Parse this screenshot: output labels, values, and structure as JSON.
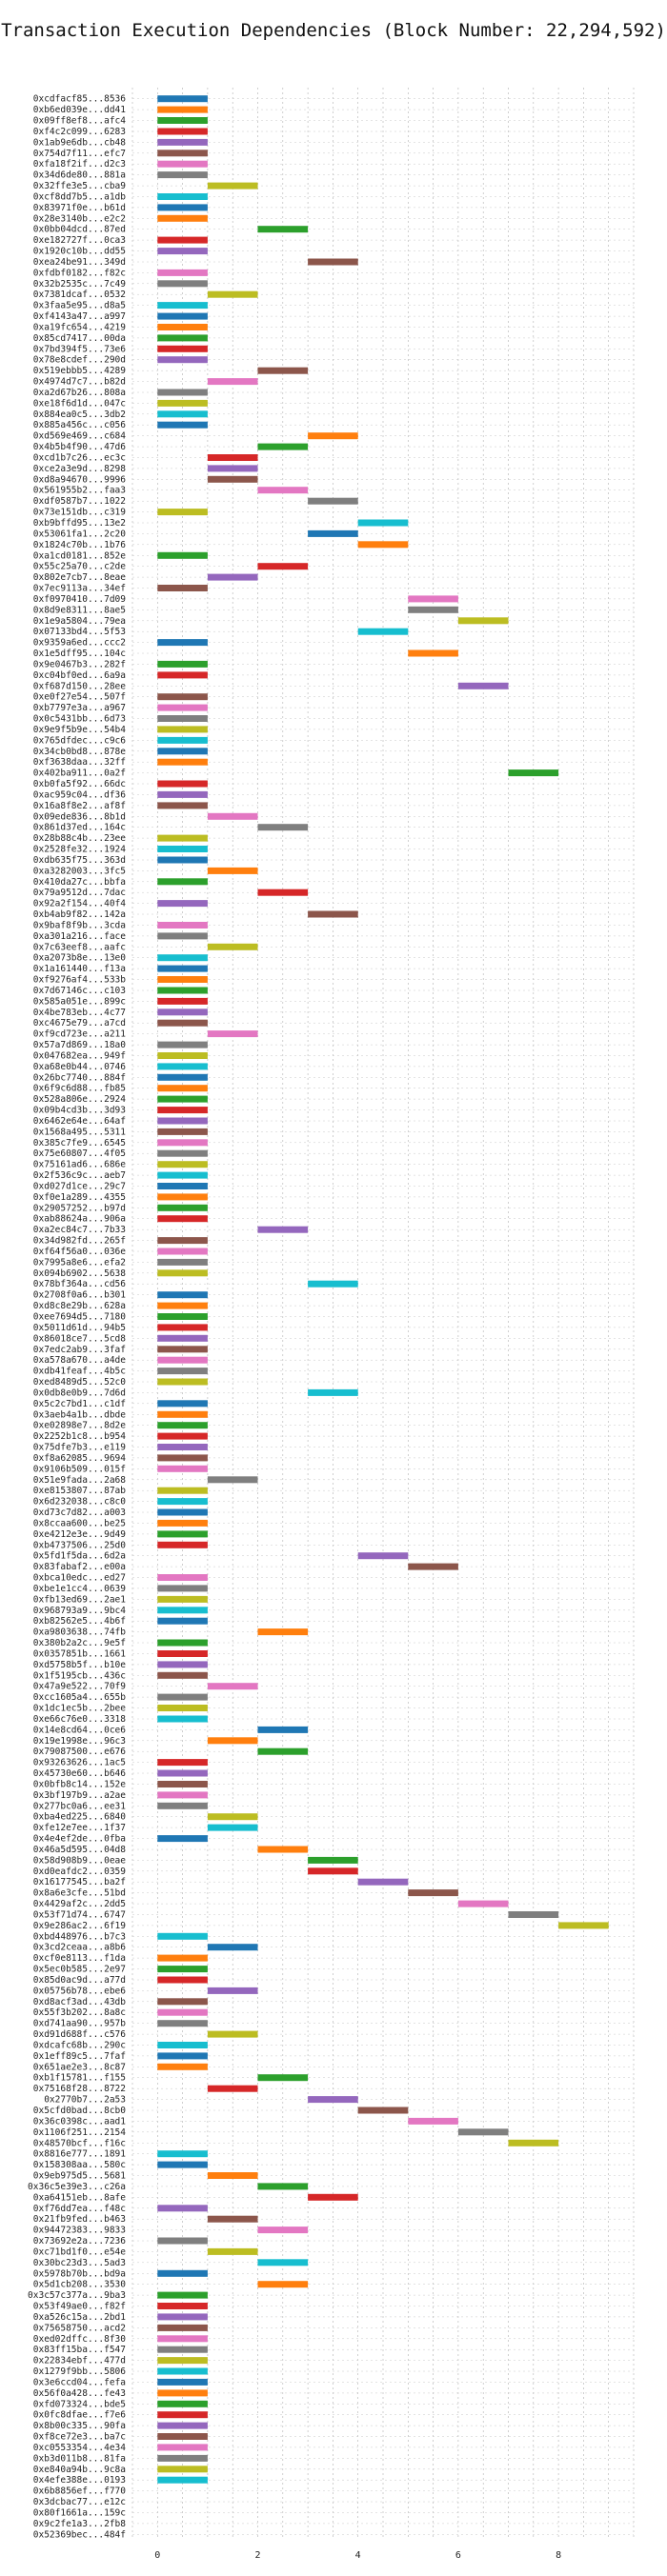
{
  "chart_data": {
    "type": "bar",
    "orientation": "horizontal-gantt",
    "title": "Transaction Execution Dependencies (Block Number: 22,294,592)",
    "xlabel": "",
    "ylabel": "",
    "xlim": [
      -0.5,
      9.5
    ],
    "xticks": [
      0,
      2,
      4,
      6,
      8
    ],
    "grid": true,
    "legend": "none",
    "palette": [
      "#1f77b4",
      "#ff7f0e",
      "#2ca02c",
      "#d62728",
      "#9467bd",
      "#8c564b",
      "#e377c2",
      "#7f7f7f",
      "#bcbd22",
      "#17becf"
    ],
    "categories": [
      "0xcdfacf85...8536",
      "0xb6ed039e...dd41",
      "0x09ff8ef8...afc4",
      "0xf4c2c099...6283",
      "0x1ab9e6db...cb48",
      "0x754d7f11...efc7",
      "0xfa18f2if...d2c3",
      "0x34d6de80...881a",
      "0x32ffe3e5...cba9",
      "0xcf8dd7b5...a1db",
      "0x83971f0e...b61d",
      "0x28e3140b...e2c2",
      "0x0bb04dcd...87ed",
      "0xe182727f...0ca3",
      "0x1920c10b...dd55",
      "0xea24be91...349d",
      "0xfdbf0182...f82c",
      "0x32b2535c...7c49",
      "0x7381dcaf...0532",
      "0x3faa5e95...d8a5",
      "0xf4143a47...a997",
      "0xa19fc654...4219",
      "0x85cd7417...00da",
      "0x7bd394f5...73e6",
      "0x78e8cdef...290d",
      "0x519ebbb5...4289",
      "0x4974d7c7...b82d",
      "0xa2d67b26...808a",
      "0xe18f6d1d...047c",
      "0x884ea0c5...3db2",
      "0x885a456c...c056",
      "0xd569e469...c684",
      "0x4b5b4f90...47d6",
      "0xcd1b7c26...ec3c",
      "0xce2a3e9d...8298",
      "0xd8a94670...9996",
      "0x561955b2...faa3",
      "0xdf0587b7...1022",
      "0x73e151db...c319",
      "0xb9bffd95...13e2",
      "0x53061fa1...2c20",
      "0x1824c70b...1b76",
      "0xa1cd0181...852e",
      "0x55c25a70...c2de",
      "0x802e7cb7...8eae",
      "0x7ec9113a...34ef",
      "0xf0970410...7d09",
      "0x8d9e8311...8ae5",
      "0x1e9a5804...79ea",
      "0x07133bd4...5f53",
      "0x9359a6ed...ccc2",
      "0x1e5dff95...104c",
      "0x9e0467b3...282f",
      "0xc04bf0ed...6a9a",
      "0xf687d150...28ee",
      "0xe0f27e54...507f",
      "0xb7797e3a...a967",
      "0x0c5431bb...6d73",
      "0x9e9f5b9e...54b4",
      "0x765dfdec...c9c6",
      "0x34cb0bd8...878e",
      "0xf3638daa...32ff",
      "0x402ba911...0a2f",
      "0xb0fa5f92...66dc",
      "0xac959c04...df36",
      "0x16a8f8e2...af8f",
      "0x09ede836...8b1d",
      "0x861d37ed...164c",
      "0x28b88c4b...23ee",
      "0x2528fe32...1924",
      "0xdb635f75...363d",
      "0xa3282003...3fc5",
      "0x410da27c...bbfa",
      "0x79a9512d...7dac",
      "0x92a2f154...40f4",
      "0xb4ab9f82...142a",
      "0x9baf8f9b...3cda",
      "0xa301a216...face",
      "0x7c63eef8...aafc",
      "0xa2073b8e...13e0",
      "0x1a161440...f13a",
      "0xf9276af4...533b",
      "0x7d67146c...c103",
      "0x585a051e...899c",
      "0x4be783eb...4c77",
      "0xc4675e79...a7cd",
      "0xf9cd723e...a211",
      "0x57a7d869...18a0",
      "0x047682ea...949f",
      "0xa68e0b44...0746",
      "0x26bc7740...884f",
      "0x6f9c6d88...fb85",
      "0x528a806e...2924",
      "0x09b4cd3b...3d93",
      "0x6462e64e...64af",
      "0x1568a495...5311",
      "0x385c7fe9...6545",
      "0x75e60807...4f05",
      "0x75161ad6...686e",
      "0x2f536c9c...aeb7",
      "0xd027d1ce...29c7",
      "0xf0e1a289...4355",
      "0x29057252...b97d",
      "0xab88624a...906a",
      "0xa2ec84c7...7b33",
      "0x34d982fd...265f",
      "0xf64f56a0...036e",
      "0x7995a8e6...efa2",
      "0x094b6902...5638",
      "0x78bf364a...cd56",
      "0x2708f0a6...b301",
      "0xd8c8e29b...628a",
      "0xee7694d5...7180",
      "0x5011d61d...94b5",
      "0x86018ce7...5cd8",
      "0x7edc2ab9...3faf",
      "0xa578a670...a4de",
      "0xdb41feaf...4b5c",
      "0xed8489d5...52c0",
      "0x0db8e0b9...7d6d",
      "0x5c2c7bd1...c1df",
      "0x3aeb4a1b...dbde",
      "0xe02898e7...8d2e",
      "0x2252b1c8...b954",
      "0x75dfe7b3...e119",
      "0xf8a62085...9694",
      "0x9106b509...015f",
      "0x51e9fada...2a68",
      "0xe8153807...87ab",
      "0x6d232038...c8c0",
      "0xd73c7d82...a003",
      "0x8ccaa600...be25",
      "0xe4212e3e...9d49",
      "0xb4737506...25d0",
      "0x5fd1f5da...6d2a",
      "0x83fabaf2...e00a",
      "0xbca10edc...ed27",
      "0xbe1e1cc4...0639",
      "0xfb13ed69...2ae1",
      "0x968793a9...9bc4",
      "0xb82562e5...4b6f",
      "0xa9803638...74fb",
      "0x380b2a2c...9e5f",
      "0x0357851b...1661",
      "0xd5758b5f...b10e",
      "0x1f5195cb...436c",
      "0x47a9e522...70f9",
      "0xcc1605a4...655b",
      "0x1dc1ec5b...2bee",
      "0xe66c76e0...3318",
      "0x14e8cd64...0ce6",
      "0x19e1998e...96c3",
      "0x79087500...e676",
      "0x93263626...1ac5",
      "0x45730e60...b646",
      "0x0bfb8c14...152e",
      "0x3bf197b9...a2ae",
      "0x277bc0a6...ee31",
      "0xba4ed225...6840",
      "0xfe12e7ee...1f37",
      "0x4e4ef2de...0fba",
      "0x46a5d595...04d8",
      "0x58d908b9...0eae",
      "0xd0eafdc2...0359",
      "0x16177545...ba2f",
      "0x8a6e3cfe...51bd",
      "0x4429af2c...2dd5",
      "0x53f71d74...6747",
      "0x9e286ac2...6f19",
      "0xbd448976...b7c3",
      "0x3cd2ceaa...a8b6",
      "0xcf0e8113...f1da",
      "0x5ec0b585...2e97",
      "0x85d0ac9d...a77d",
      "0x05756b78...ebe6",
      "0xd8acf3ad...43db",
      "0x55f3b202...8a8c",
      "0xd741aa90...957b",
      "0xd91d688f...c576",
      "0xdcafc68b...290c",
      "0x1eff89c5...7faf",
      "0x651ae2e3...8c87",
      "0xb1f15781...f155",
      "0x75168f28...8722",
      "0x2770b7...2a53",
      "0x5cfd0bad...8cb0",
      "0x36c0398c...aad1",
      "0x1106f251...2154",
      "0x48570bcf...f16c",
      "0x8816e777...1891",
      "0x158308aa...580c",
      "0x9eb975d5...5681",
      "0x36c5e39e3...c26a",
      "0xa64151eb...8afe",
      "0xf76dd7ea...f48c",
      "0x21fb9fed...b463",
      "0x94472383...9833",
      "0x73692e2a...7236",
      "0xc71bd1f0...e54e",
      "0x30bc23d3...5ad3",
      "0x5978b70b...bd9a",
      "0x5d1cb208...3530",
      "0x3c57c377a...9ba3",
      "0x53f49ae0...f82f",
      "0xa526c15a...2bd1",
      "0x75658750...acd2",
      "0xed02dffc...8f30",
      "0x83ff15ba...f547",
      "0x22834ebf...477d",
      "0x1279f9bb...5806",
      "0x3e6ccd04...fefa",
      "0x56f0a428...fe43",
      "0xfd073324...bde5",
      "0x0fc8dfae...f7e6",
      "0x8b00c335...90fa",
      "0xf8ce72e3...ba7c",
      "0xc0553354...4e34",
      "0xb3d011b8...81fa",
      "0xe840a94b...9c8a",
      "0x4efe388e...0193",
      "0x6b8856ef...f770",
      "0x3dcbac77...e12c",
      "0x80f1661a...159c",
      "0x9c2fe1a3...2fb8",
      "0x52369bec...484f"
    ],
    "start": [
      0,
      0,
      0,
      0,
      0,
      0,
      0,
      0,
      1,
      0,
      0,
      0,
      2,
      0,
      0,
      3,
      0,
      0,
      1,
      0,
      0,
      0,
      0,
      0,
      0,
      2,
      1,
      0,
      0,
      0,
      0,
      3,
      2,
      1,
      1,
      1,
      2,
      3,
      0,
      4,
      3,
      4,
      0,
      2,
      1,
      0,
      5,
      5,
      6,
      4,
      0,
      5,
      0,
      0,
      6,
      0,
      0,
      0,
      0,
      0,
      0,
      0,
      7,
      0,
      0,
      0,
      1,
      2,
      0,
      0,
      0,
      1,
      0,
      2,
      0,
      3,
      0,
      0,
      1,
      0,
      0,
      0,
      0,
      0,
      0,
      0,
      1,
      0,
      0,
      0,
      0,
      0,
      0,
      0,
      0,
      0,
      0,
      0,
      0,
      0,
      0,
      0,
      0,
      0,
      2,
      0,
      0,
      0,
      0,
      3,
      0,
      0,
      0,
      0,
      0,
      0,
      0,
      0,
      0,
      3,
      0,
      0,
      0,
      0,
      0,
      0,
      0,
      1,
      0,
      0,
      0,
      0,
      0,
      0,
      4,
      5,
      0,
      0,
      0,
      0,
      0,
      2,
      0,
      0,
      0,
      0,
      1,
      0,
      0,
      0,
      2,
      1,
      2,
      0,
      0,
      0,
      0,
      0,
      1,
      1,
      0,
      2,
      3,
      3,
      4,
      5,
      6,
      7,
      8,
      0,
      1,
      0,
      0,
      0,
      1,
      0,
      0,
      0,
      1,
      0,
      0,
      0,
      2,
      1,
      3,
      4,
      5,
      6,
      7,
      0,
      0,
      1,
      2,
      3,
      0,
      1,
      2,
      0,
      1,
      2,
      0,
      2,
      0,
      0,
      0,
      0,
      0,
      0,
      0,
      0,
      0,
      0,
      0,
      0,
      0,
      0,
      0,
      0,
      0,
      0
    ],
    "duration": [
      1,
      1,
      1,
      1,
      1,
      1,
      1,
      1,
      1,
      1,
      1,
      1,
      1,
      1,
      1,
      1,
      1,
      1,
      1,
      1,
      1,
      1,
      1,
      1,
      1,
      1,
      1,
      1,
      1,
      1,
      1,
      1,
      1,
      1,
      1,
      1,
      1,
      1,
      1,
      1,
      1,
      1,
      1,
      1,
      1,
      1,
      1,
      1,
      1,
      1,
      1,
      1,
      1,
      1,
      1,
      1,
      1,
      1,
      1,
      1,
      1,
      1,
      1,
      1,
      1,
      1,
      1,
      1,
      1,
      1,
      1,
      1,
      1,
      1,
      1,
      1,
      1,
      1,
      1,
      1,
      1,
      1,
      1,
      1,
      1,
      1,
      1,
      1,
      1,
      1,
      1,
      1,
      1,
      1,
      1,
      1,
      1,
      1,
      1,
      1,
      1,
      1,
      1,
      1,
      1,
      1,
      1,
      1,
      1,
      1,
      1,
      1,
      1,
      1,
      1,
      1,
      1,
      1,
      1,
      1,
      1,
      1,
      1,
      1,
      1,
      1,
      1,
      1,
      1,
      1,
      1,
      1,
      1,
      1,
      1,
      1,
      1,
      1,
      1,
      1,
      1,
      1,
      1,
      1,
      1,
      1,
      1,
      1,
      1,
      1,
      1,
      1,
      1,
      1,
      1,
      1,
      1,
      1,
      1,
      1,
      1,
      1,
      1,
      1,
      1,
      1,
      1,
      1,
      1,
      1,
      1,
      1,
      1,
      1,
      1,
      1,
      1,
      1,
      1,
      1,
      1,
      1,
      1,
      1,
      1,
      1,
      1,
      1,
      1,
      1,
      1,
      1,
      1,
      1,
      1,
      1,
      1,
      1,
      1,
      1,
      1,
      1,
      1,
      1,
      1,
      1,
      1,
      1,
      1,
      1,
      1,
      1,
      1,
      1,
      1,
      1,
      1,
      1,
      1,
      1
    ],
    "colors": [
      0,
      1,
      2,
      3,
      4,
      5,
      6,
      7,
      8,
      9,
      0,
      1,
      2,
      3,
      4,
      5,
      6,
      7,
      8,
      9,
      0,
      1,
      2,
      3,
      4,
      5,
      6,
      7,
      8,
      9,
      0,
      1,
      2,
      3,
      4,
      5,
      6,
      7,
      8,
      9,
      0,
      1,
      2,
      3,
      4,
      5,
      6,
      7,
      8,
      9,
      0,
      1,
      2,
      3,
      4,
      5,
      6,
      7,
      8,
      9,
      0,
      1,
      2,
      3,
      4,
      5,
      6,
      7,
      8,
      9,
      0,
      1,
      2,
      3,
      4,
      5,
      6,
      7,
      8,
      9,
      0,
      1,
      2,
      3,
      4,
      5,
      6,
      7,
      8,
      9,
      0,
      1,
      2,
      3,
      4,
      5,
      6,
      7,
      8,
      9,
      0,
      1,
      2,
      3,
      4,
      5,
      6,
      7,
      8,
      9,
      0,
      1,
      2,
      3,
      4,
      5,
      6,
      7,
      8,
      9,
      0,
      1,
      2,
      3,
      4,
      5,
      6,
      7,
      8,
      9,
      0,
      1,
      2,
      3,
      4,
      5,
      6,
      7,
      8,
      9,
      0,
      1,
      2,
      3,
      4,
      5,
      6,
      7,
      8,
      9,
      0,
      1,
      2,
      3,
      4,
      5,
      6,
      7,
      8,
      9,
      0,
      1,
      2,
      3,
      4,
      5,
      6,
      7,
      8,
      9,
      0,
      1,
      2,
      3,
      4,
      5,
      6,
      7,
      8,
      9,
      0,
      1,
      2,
      3,
      4,
      5,
      6,
      7,
      8,
      9,
      0,
      1,
      2,
      3,
      4,
      5,
      6,
      7,
      8,
      9,
      0,
      1,
      2,
      3,
      4,
      5,
      6,
      7,
      8,
      9,
      0,
      1,
      2,
      3,
      4,
      5,
      6,
      7,
      8,
      9
    ]
  }
}
